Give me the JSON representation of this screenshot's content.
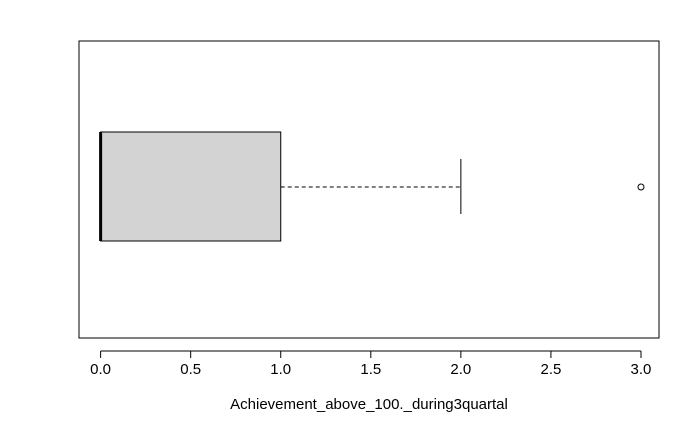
{
  "chart_data": {
    "type": "boxplot",
    "orientation": "horizontal",
    "title": "",
    "xlabel": "Achievement_above_100._during3quartal",
    "ylabel": "",
    "xlim": [
      -0.12,
      3.1
    ],
    "ticks": [
      0.0,
      0.5,
      1.0,
      1.5,
      2.0,
      2.5,
      3.0
    ],
    "tick_labels": [
      "0.0",
      "0.5",
      "1.0",
      "1.5",
      "2.0",
      "2.5",
      "3.0"
    ],
    "box": {
      "whisker_low": 0,
      "q1": 0,
      "median": 0,
      "q3": 1,
      "whisker_high": 2
    },
    "outliers": [
      3
    ],
    "grid": false,
    "box_color": "#d3d3d3",
    "line_color": "#000000"
  }
}
